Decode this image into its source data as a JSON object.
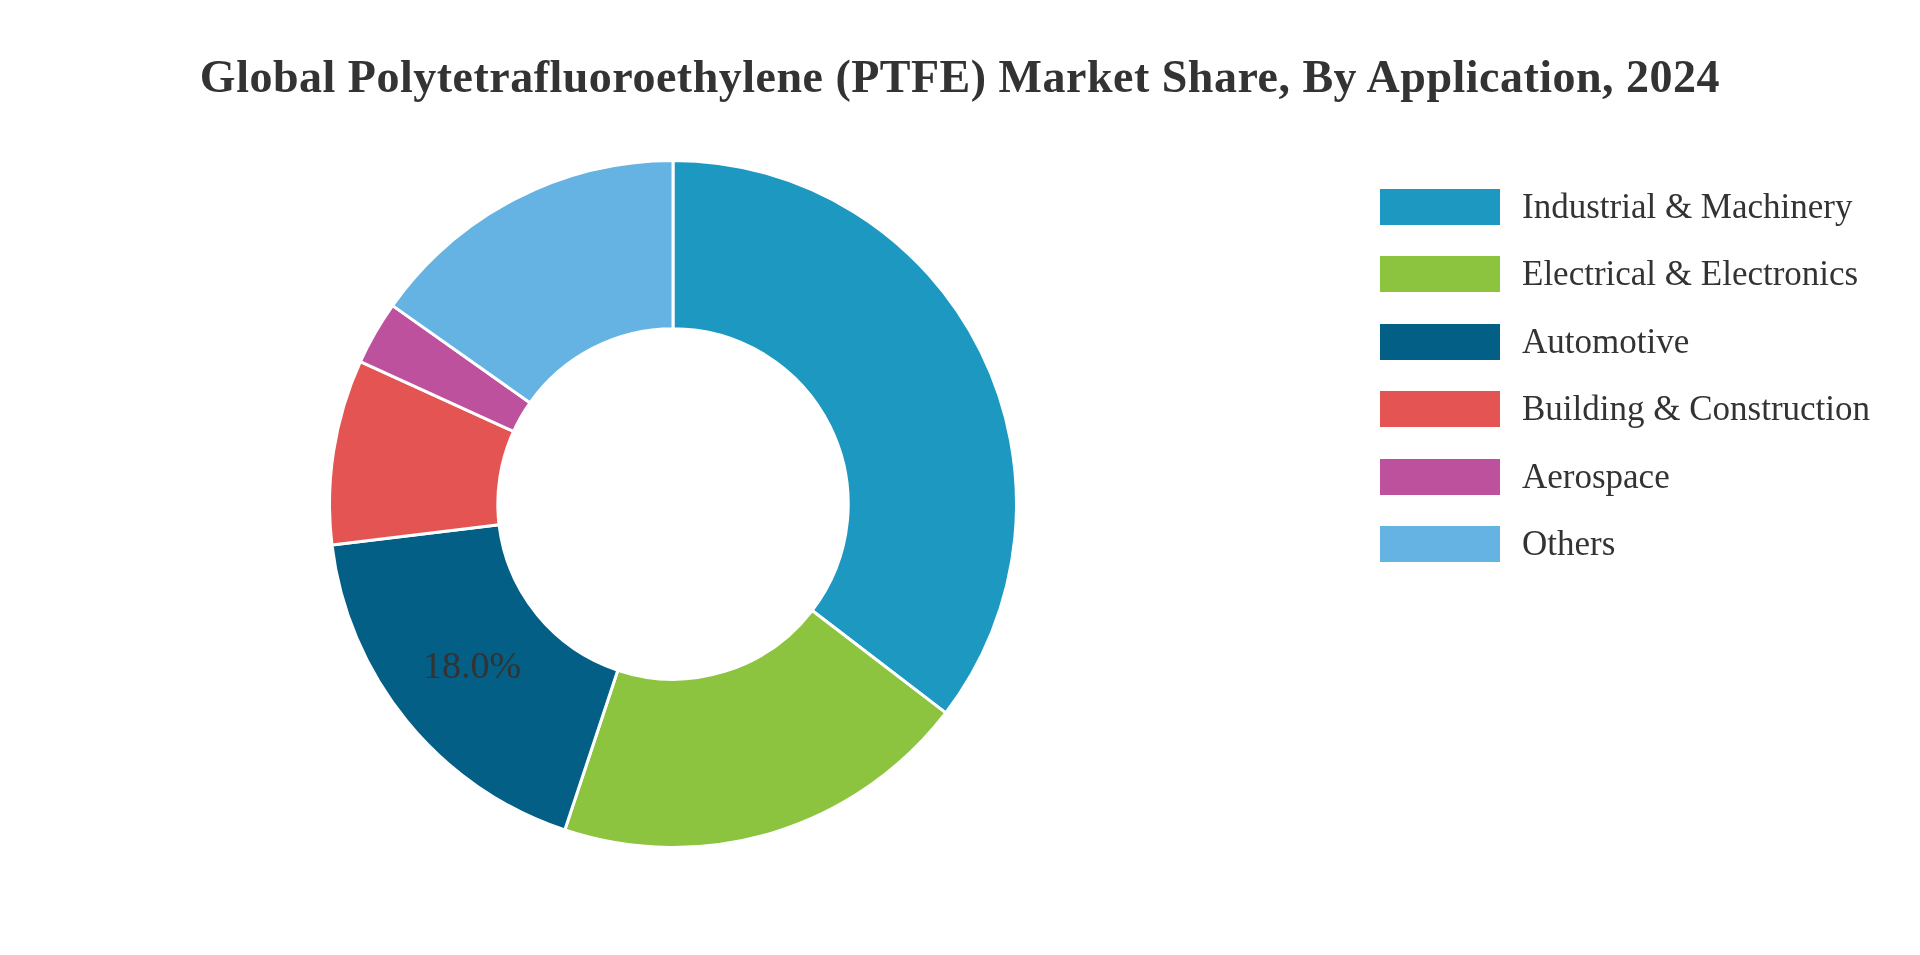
{
  "chart_data": {
    "type": "donut",
    "title": "Global Polytetrafluoroethylene (PTFE) Market Share, By Application, 2024",
    "categories": [
      "Industrial & Machinery",
      "Electrical & Electronics",
      "Automotive",
      "Building & Construction",
      "Aerospace",
      "Others"
    ],
    "values": [
      35.4,
      19.7,
      18.0,
      8.7,
      3.0,
      15.2
    ],
    "colors": [
      "#1d98c1",
      "#8dc43f",
      "#045f86",
      "#e35452",
      "#bd519e",
      "#64b3e2"
    ],
    "value_labels": [
      null,
      null,
      "18.0%",
      null,
      null,
      null
    ],
    "legend": "right"
  }
}
